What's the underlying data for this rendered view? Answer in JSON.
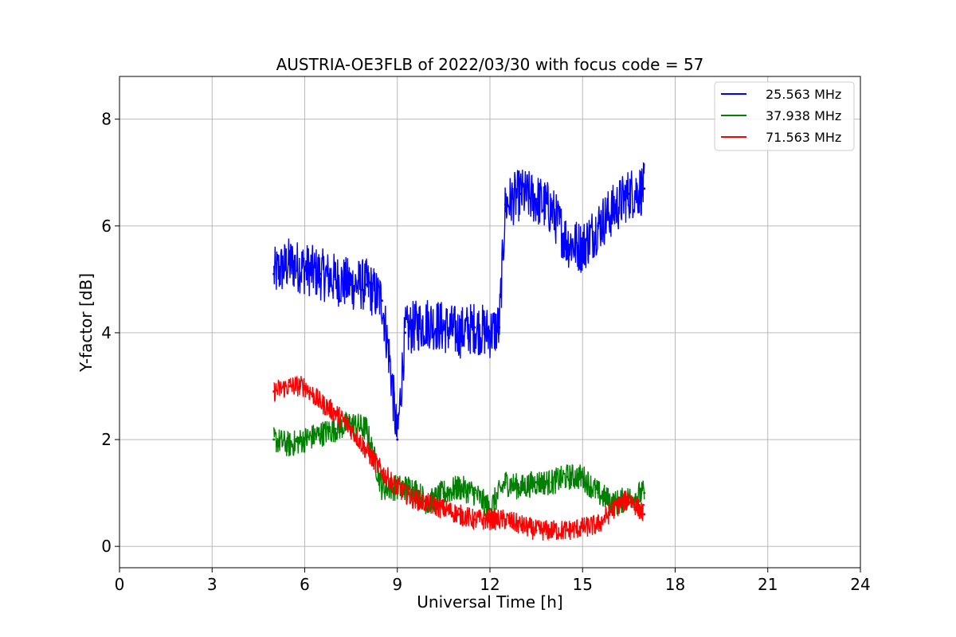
{
  "chart_data": {
    "type": "line",
    "title": "AUSTRIA-OE3FLB of 2022/03/30 with focus code = 57",
    "xlabel": "Universal Time [h]",
    "ylabel": "Y-factor [dB]",
    "xlim": [
      0,
      24
    ],
    "ylim": [
      -0.4,
      8.8
    ],
    "xticks": [
      "0",
      "3",
      "6",
      "9",
      "12",
      "15",
      "18",
      "21",
      "24"
    ],
    "yticks": [
      "0",
      "2",
      "4",
      "6",
      "8"
    ],
    "grid": true,
    "legend_position": "top-right",
    "series": [
      {
        "name": "25.563 MHz",
        "color": "#0000ff",
        "x": [
          5.0,
          5.5,
          6.0,
          6.5,
          7.0,
          7.5,
          8.0,
          8.5,
          8.75,
          9.0,
          9.25,
          9.5,
          10.0,
          10.5,
          11.0,
          11.5,
          12.0,
          12.3,
          12.5,
          13.0,
          13.5,
          14.0,
          14.5,
          15.0,
          15.5,
          16.0,
          16.5,
          17.0
        ],
        "y": [
          5.1,
          5.3,
          5.2,
          5.1,
          5.0,
          4.9,
          4.9,
          4.6,
          3.5,
          2.0,
          4.0,
          4.1,
          4.2,
          4.1,
          4.0,
          4.1,
          4.0,
          4.1,
          6.4,
          6.6,
          6.5,
          6.3,
          5.7,
          5.6,
          6.0,
          6.3,
          6.6,
          6.7
        ],
        "noise": 0.5
      },
      {
        "name": "37.938 MHz",
        "color": "#008000",
        "x": [
          5.0,
          5.5,
          6.0,
          6.5,
          7.0,
          7.5,
          8.0,
          8.5,
          9.0,
          9.5,
          10.0,
          10.5,
          11.0,
          11.5,
          12.0,
          12.5,
          13.0,
          13.5,
          14.0,
          14.5,
          15.0,
          15.5,
          16.0,
          16.5,
          17.0
        ],
        "y": [
          2.0,
          1.9,
          2.0,
          2.1,
          2.2,
          2.3,
          2.2,
          1.1,
          1.1,
          1.1,
          0.8,
          1.0,
          1.1,
          1.0,
          0.7,
          1.2,
          1.1,
          1.2,
          1.2,
          1.3,
          1.3,
          1.0,
          0.8,
          0.9,
          1.0
        ],
        "noise": 0.25
      },
      {
        "name": "71.563 MHz",
        "color": "#ff0000",
        "x": [
          5.0,
          5.5,
          6.0,
          6.5,
          7.0,
          7.5,
          8.0,
          8.5,
          9.0,
          9.5,
          10.0,
          10.5,
          11.0,
          11.5,
          12.0,
          12.5,
          13.0,
          13.5,
          14.0,
          14.5,
          15.0,
          15.5,
          16.0,
          16.5,
          17.0
        ],
        "y": [
          2.9,
          3.0,
          3.0,
          2.7,
          2.5,
          2.2,
          1.8,
          1.4,
          1.1,
          0.9,
          0.8,
          0.7,
          0.6,
          0.5,
          0.5,
          0.5,
          0.4,
          0.3,
          0.3,
          0.3,
          0.35,
          0.4,
          0.7,
          0.9,
          0.6
        ],
        "noise": 0.2
      }
    ]
  }
}
